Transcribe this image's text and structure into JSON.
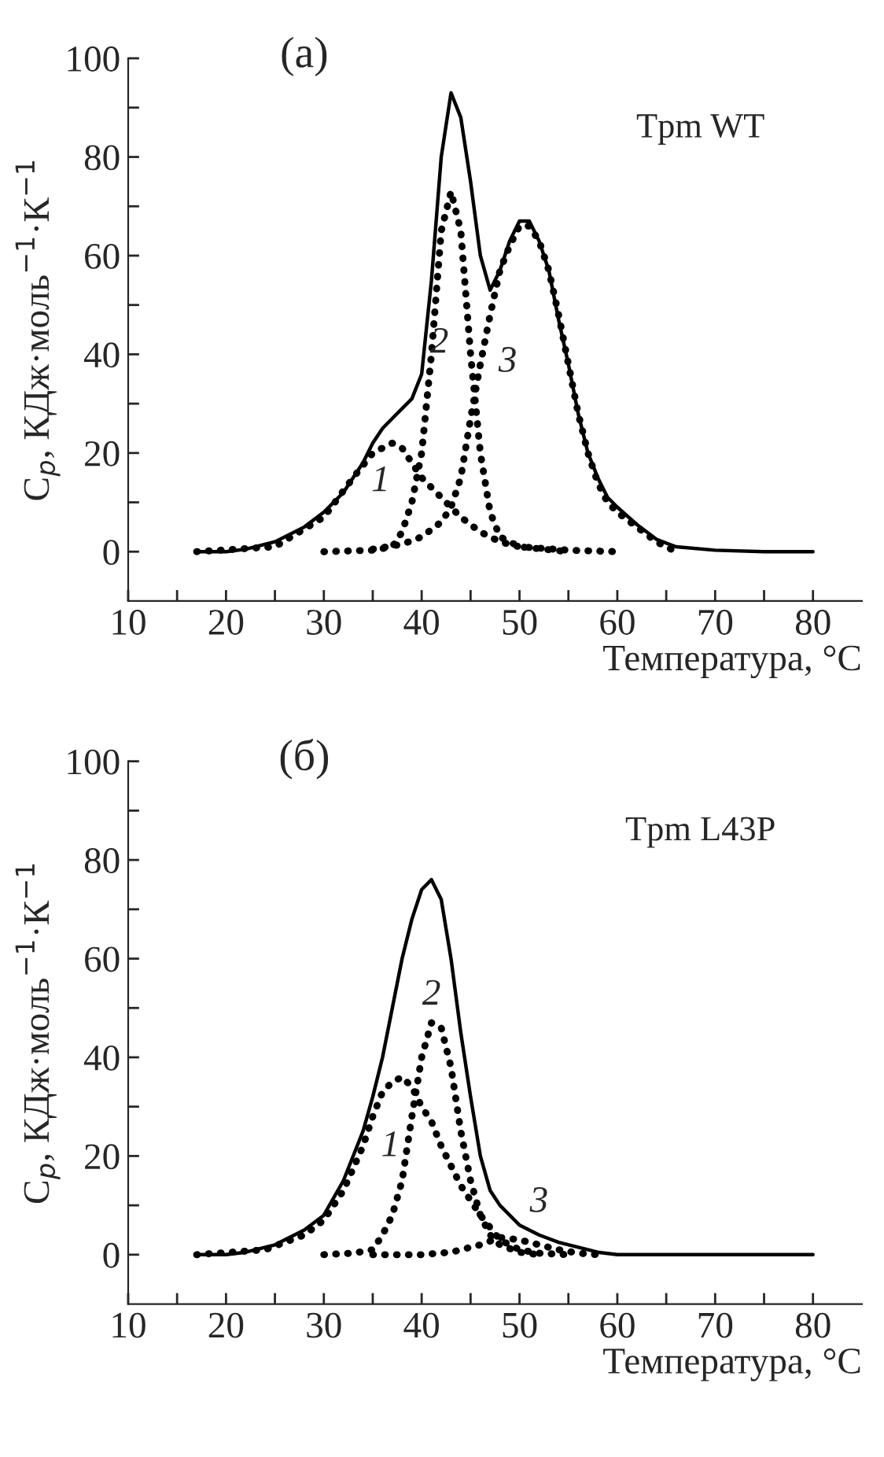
{
  "chart_data": [
    {
      "type": "line",
      "title": "(a)",
      "xlabel": "Температура, °C",
      "ylabel": "C$_{p}$, КДж·моль$^{−1}$·К$^{−1}$",
      "annotations": [
        "Tpm WT"
      ],
      "xlim": [
        10,
        85
      ],
      "ylim": [
        -10,
        100
      ],
      "xticks": [
        10,
        {
          "value": 15,
          "label": null
        },
        20,
        {
          "value": 25,
          "label": null
        },
        30,
        {
          "value": 35,
          "label": null
        },
        40,
        {
          "value": 45,
          "label": null
        },
        50,
        {
          "value": 55,
          "label": null
        },
        60,
        {
          "value": 65,
          "label": null
        },
        70,
        {
          "value": 75,
          "label": null
        },
        80
      ],
      "yticks": [
        0,
        {
          "value": 10,
          "label": null
        },
        20,
        {
          "value": 30,
          "label": null
        },
        40,
        {
          "value": 50,
          "label": null
        },
        60,
        {
          "value": 70,
          "label": null
        },
        80,
        {
          "value": 90,
          "label": null
        },
        100
      ],
      "grid": false,
      "legend": false,
      "series": [
        {
          "color": "#000000",
          "line_style": "solid",
          "x": [
            17,
            20,
            22,
            25,
            28,
            30,
            32,
            34,
            35,
            36,
            38,
            39,
            40,
            41,
            42,
            43,
            44,
            45,
            46,
            47,
            48,
            49,
            50,
            51,
            52,
            53,
            54,
            55,
            56,
            57,
            58,
            59,
            60,
            62,
            64,
            66,
            70,
            75,
            80
          ],
          "values": [
            0,
            0,
            0.5,
            2,
            5,
            8,
            12,
            18,
            22,
            25,
            29,
            31,
            36,
            55,
            80,
            93,
            88,
            75,
            60,
            53,
            57,
            63,
            67,
            67,
            63,
            57,
            47,
            38,
            28,
            20,
            15,
            11,
            9,
            5.5,
            2.5,
            1,
            0.3,
            0,
            0
          ]
        },
        {
          "name": "1",
          "color": "#000000",
          "line_style": "dotted",
          "x": [
            17,
            25,
            30,
            33,
            35,
            37,
            38,
            39,
            40,
            41,
            42,
            43,
            44,
            46,
            48,
            50,
            55,
            60
          ],
          "values": [
            0,
            1,
            7,
            15,
            20,
            22,
            21,
            18,
            15,
            13,
            11,
            9,
            7,
            4,
            2,
            1,
            0.3,
            0
          ]
        },
        {
          "name": "2",
          "color": "#000000",
          "line_style": "dotted",
          "x": [
            30,
            35,
            37,
            38,
            39,
            40,
            41,
            42,
            43,
            44,
            45,
            46,
            47,
            48,
            50,
            55
          ],
          "values": [
            0,
            0.3,
            1,
            4,
            10,
            20,
            40,
            65,
            73,
            65,
            40,
            20,
            8,
            3,
            1,
            0
          ]
        },
        {
          "name": "3",
          "color": "#000000",
          "line_style": "dotted",
          "x": [
            35,
            38,
            40,
            42,
            43,
            44,
            45,
            46,
            47,
            48,
            49,
            50,
            51,
            52,
            53,
            54,
            55,
            56,
            57,
            58,
            59,
            60,
            62,
            64,
            65,
            66
          ],
          "values": [
            0.5,
            1.5,
            3,
            6,
            9,
            15,
            27,
            38,
            48,
            57,
            62,
            66,
            66,
            63,
            57,
            48,
            38,
            28,
            20,
            14,
            10,
            8,
            5,
            2,
            1,
            0
          ]
        }
      ]
    },
    {
      "type": "line",
      "title": "(б)",
      "xlabel": "Температура, °C",
      "ylabel": "C$_{p}$, КДж·моль$^{−1}$·К$^{−1}$",
      "annotations": [
        "Tpm L43P"
      ],
      "xlim": [
        10,
        85
      ],
      "ylim": [
        -10,
        100
      ],
      "xticks": [
        10,
        {
          "value": 15,
          "label": null
        },
        20,
        {
          "value": 25,
          "label": null
        },
        30,
        {
          "value": 35,
          "label": null
        },
        40,
        {
          "value": 45,
          "label": null
        },
        50,
        {
          "value": 55,
          "label": null
        },
        60,
        {
          "value": 65,
          "label": null
        },
        70,
        {
          "value": 75,
          "label": null
        },
        80
      ],
      "yticks": [
        0,
        {
          "value": 10,
          "label": null
        },
        20,
        {
          "value": 30,
          "label": null
        },
        40,
        {
          "value": 50,
          "label": null
        },
        60,
        {
          "value": 70,
          "label": null
        },
        80,
        {
          "value": 90,
          "label": null
        },
        100
      ],
      "grid": false,
      "legend": false,
      "series": [
        {
          "color": "#000000",
          "line_style": "solid",
          "x": [
            17,
            20,
            22,
            25,
            28,
            30,
            32,
            34,
            35,
            36,
            37,
            38,
            39,
            40,
            41,
            42,
            43,
            44,
            45,
            46,
            47,
            48,
            50,
            52,
            54,
            56,
            58,
            60,
            70,
            80
          ],
          "values": [
            0,
            0,
            0.5,
            2,
            5,
            8,
            15,
            25,
            32,
            40,
            50,
            60,
            68,
            74,
            76,
            72,
            60,
            45,
            32,
            20,
            13,
            10,
            6,
            4,
            2.5,
            1.5,
            0.5,
            0,
            0,
            0
          ]
        },
        {
          "name": "1",
          "color": "#000000",
          "line_style": "dotted",
          "x": [
            17,
            24,
            28,
            30,
            32,
            34,
            35,
            36,
            37,
            38,
            39,
            40,
            41,
            42,
            44,
            46,
            48,
            50,
            52,
            55
          ],
          "values": [
            0,
            1,
            4,
            7,
            13,
            22,
            28,
            33,
            35,
            36,
            34,
            30,
            27,
            22,
            14,
            8,
            3,
            1,
            0.3,
            0
          ]
        },
        {
          "name": "2",
          "color": "#000000",
          "line_style": "dotted",
          "x": [
            30,
            33,
            35,
            36,
            37,
            38,
            39,
            40,
            41,
            42,
            43,
            44,
            45,
            46,
            47,
            48,
            50,
            52
          ],
          "values": [
            0,
            0.3,
            1,
            4,
            8,
            15,
            28,
            40,
            47,
            46,
            38,
            25,
            15,
            8,
            4,
            2,
            0.5,
            0
          ]
        },
        {
          "name": "3",
          "color": "#000000",
          "line_style": "dotted",
          "x": [
            35,
            40,
            43,
            46,
            48,
            50,
            52,
            54,
            56,
            58
          ],
          "values": [
            0,
            0,
            0.5,
            2,
            3.5,
            3,
            2,
            1,
            0.3,
            0
          ]
        }
      ]
    }
  ]
}
